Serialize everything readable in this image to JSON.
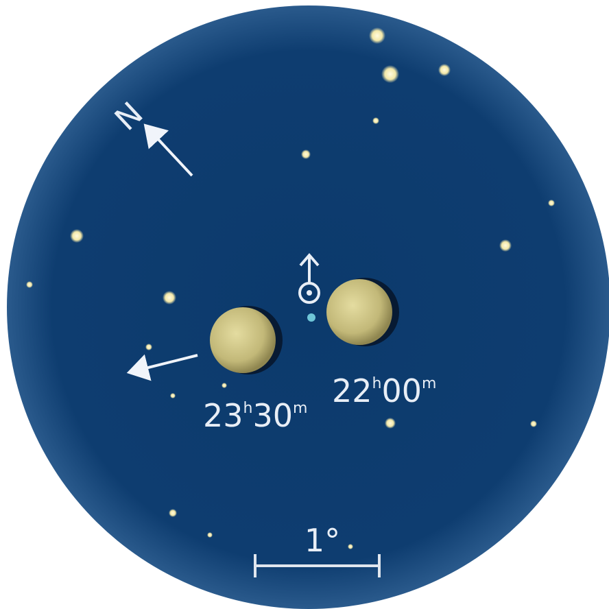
{
  "compass": {
    "north": "N"
  },
  "moons": [
    {
      "time": [
        "23",
        "h",
        "30",
        "m"
      ]
    },
    {
      "time": [
        "22",
        "h",
        "00",
        "m"
      ]
    }
  ],
  "scale": {
    "label": "1°"
  }
}
